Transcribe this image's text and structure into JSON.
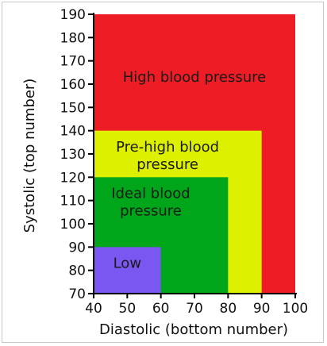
{
  "chart_data": {
    "type": "area",
    "title": "",
    "xlabel": "Diastolic (bottom number)",
    "ylabel": "Systolic (top number)",
    "xlim": [
      40,
      100
    ],
    "ylim": [
      70,
      190
    ],
    "x_ticks": [
      40,
      50,
      60,
      70,
      80,
      90,
      100
    ],
    "y_ticks": [
      70,
      80,
      90,
      100,
      110,
      120,
      130,
      140,
      150,
      160,
      170,
      180,
      190
    ],
    "zones": [
      {
        "name": "High blood pressure",
        "label_lines": [
          "High blood pressure"
        ],
        "diastolic": [
          40,
          100
        ],
        "systolic": [
          70,
          190
        ],
        "color": "#ee1d25",
        "label_at": [
          70,
          161
        ]
      },
      {
        "name": "Pre-high blood pressure",
        "label_lines": [
          "Pre-high blood",
          "pressure"
        ],
        "diastolic": [
          40,
          90
        ],
        "systolic": [
          70,
          140
        ],
        "color": "#dcf000",
        "label_at": [
          62,
          131
        ]
      },
      {
        "name": "Ideal blood pressure",
        "label_lines": [
          "Ideal blood",
          "pressure"
        ],
        "diastolic": [
          40,
          80
        ],
        "systolic": [
          70,
          120
        ],
        "color": "#00a619",
        "label_at": [
          57,
          111
        ]
      },
      {
        "name": "Low",
        "label_lines": [
          "Low"
        ],
        "diastolic": [
          40,
          60
        ],
        "systolic": [
          70,
          90
        ],
        "color": "#7b57f2",
        "label_at": [
          50,
          81
        ]
      }
    ]
  }
}
